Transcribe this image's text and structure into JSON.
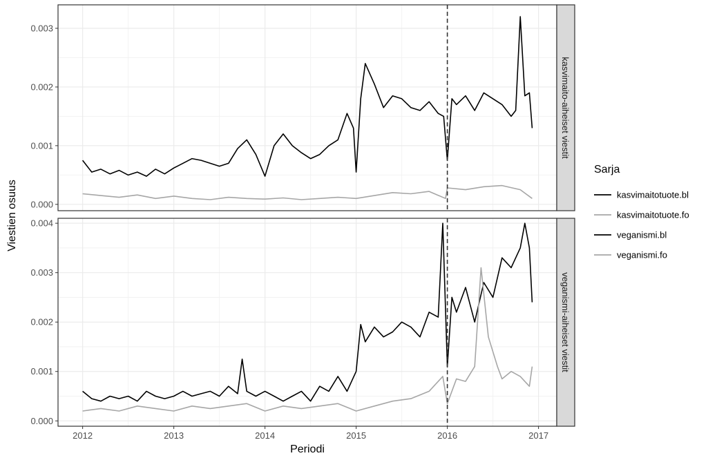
{
  "chart_data": {
    "type": "line",
    "xlabel": "Periodi",
    "ylabel": "Viestien osuus",
    "x_ticks": [
      2012,
      2013,
      2014,
      2015,
      2016,
      2017
    ],
    "vline_x": 2016,
    "legend": {
      "title": "Sarja",
      "placement": "right",
      "entries": [
        {
          "name": "kasvimaitotuote.bl",
          "color": "#000000"
        },
        {
          "name": "kasvimaitotuote.fo",
          "color": "#a6a6a6"
        },
        {
          "name": "veganismi.bl",
          "color": "#000000"
        },
        {
          "name": "veganismi.fo",
          "color": "#a6a6a6"
        }
      ]
    },
    "grid": true,
    "panels": [
      {
        "strip_label": "kasvimaito-aiheiset viestit",
        "xlim": [
          2011.73,
          2017.2
        ],
        "ylim": [
          -0.000108,
          0.0034
        ],
        "y_ticks": [
          0.0,
          0.001,
          0.002,
          0.003
        ],
        "y_tick_labels": [
          "0.000",
          "0.001",
          "0.002",
          "0.003"
        ],
        "series": [
          {
            "name": "kasvimaitotuote.bl",
            "color": "#000000",
            "x": [
              2012.0,
              2012.1,
              2012.2,
              2012.3,
              2012.4,
              2012.5,
              2012.6,
              2012.7,
              2012.8,
              2012.9,
              2013.0,
              2013.1,
              2013.2,
              2013.3,
              2013.4,
              2013.5,
              2013.6,
              2013.7,
              2013.8,
              2013.9,
              2014.0,
              2014.1,
              2014.2,
              2014.3,
              2014.4,
              2014.5,
              2014.6,
              2014.7,
              2014.8,
              2014.9,
              2014.97,
              2015.0,
              2015.05,
              2015.1,
              2015.2,
              2015.3,
              2015.4,
              2015.5,
              2015.6,
              2015.7,
              2015.8,
              2015.9,
              2015.96,
              2016.0,
              2016.05,
              2016.1,
              2016.2,
              2016.3,
              2016.4,
              2016.5,
              2016.6,
              2016.7,
              2016.75,
              2016.8,
              2016.85,
              2016.9,
              2016.93
            ],
            "y": [
              0.00075,
              0.00055,
              0.0006,
              0.00052,
              0.00058,
              0.0005,
              0.00055,
              0.00048,
              0.0006,
              0.00052,
              0.00062,
              0.0007,
              0.00078,
              0.00075,
              0.0007,
              0.00065,
              0.0007,
              0.00095,
              0.0011,
              0.00085,
              0.00048,
              0.001,
              0.0012,
              0.001,
              0.00088,
              0.00078,
              0.00085,
              0.001,
              0.0011,
              0.00155,
              0.0013,
              0.00055,
              0.0018,
              0.0024,
              0.00205,
              0.00165,
              0.00185,
              0.0018,
              0.00165,
              0.0016,
              0.00175,
              0.00155,
              0.0015,
              0.00075,
              0.0018,
              0.0017,
              0.00185,
              0.0016,
              0.0019,
              0.0018,
              0.0017,
              0.0015,
              0.0016,
              0.0032,
              0.00185,
              0.0019,
              0.0013
            ]
          },
          {
            "name": "kasvimaitotuote.fo",
            "color": "#a6a6a6",
            "x": [
              2012.0,
              2012.2,
              2012.4,
              2012.6,
              2012.8,
              2013.0,
              2013.2,
              2013.4,
              2013.6,
              2013.8,
              2014.0,
              2014.2,
              2014.4,
              2014.6,
              2014.8,
              2015.0,
              2015.2,
              2015.4,
              2015.6,
              2015.8,
              2015.98,
              2016.0,
              2016.2,
              2016.4,
              2016.6,
              2016.8,
              2016.93
            ],
            "y": [
              0.00018,
              0.00015,
              0.00012,
              0.00016,
              0.0001,
              0.00014,
              0.0001,
              8e-05,
              0.00012,
              0.0001,
              9e-05,
              0.00011,
              8e-05,
              0.0001,
              0.00012,
              0.0001,
              0.00015,
              0.0002,
              0.00018,
              0.00022,
              0.0001,
              0.00028,
              0.00025,
              0.0003,
              0.00032,
              0.00025,
              0.0001
            ]
          }
        ]
      },
      {
        "strip_label": "veganismi-aiheiset viestit",
        "xlim": [
          2011.73,
          2017.2
        ],
        "ylim": [
          -0.000108,
          0.0041
        ],
        "y_ticks": [
          0.0,
          0.001,
          0.002,
          0.003,
          0.004
        ],
        "y_tick_labels": [
          "0.000",
          "0.001",
          "0.002",
          "0.003",
          "0.004"
        ],
        "series": [
          {
            "name": "veganismi.bl",
            "color": "#000000",
            "x": [
              2012.0,
              2012.1,
              2012.2,
              2012.3,
              2012.4,
              2012.5,
              2012.6,
              2012.7,
              2012.8,
              2012.9,
              2013.0,
              2013.1,
              2013.2,
              2013.3,
              2013.4,
              2013.5,
              2013.6,
              2013.7,
              2013.75,
              2013.8,
              2013.9,
              2014.0,
              2014.1,
              2014.2,
              2014.3,
              2014.4,
              2014.5,
              2014.6,
              2014.7,
              2014.8,
              2014.9,
              2015.0,
              2015.05,
              2015.1,
              2015.2,
              2015.3,
              2015.4,
              2015.5,
              2015.6,
              2015.7,
              2015.8,
              2015.9,
              2015.95,
              2016.0,
              2016.05,
              2016.1,
              2016.2,
              2016.3,
              2016.4,
              2016.5,
              2016.6,
              2016.7,
              2016.8,
              2016.85,
              2016.9,
              2016.93
            ],
            "y": [
              0.0006,
              0.00045,
              0.0004,
              0.0005,
              0.00045,
              0.0005,
              0.0004,
              0.0006,
              0.0005,
              0.00045,
              0.0005,
              0.0006,
              0.0005,
              0.00055,
              0.0006,
              0.0005,
              0.0007,
              0.00055,
              0.00125,
              0.0006,
              0.0005,
              0.0006,
              0.0005,
              0.0004,
              0.0005,
              0.0006,
              0.0004,
              0.0007,
              0.0006,
              0.0009,
              0.0006,
              0.001,
              0.00195,
              0.0016,
              0.0019,
              0.0017,
              0.0018,
              0.002,
              0.0019,
              0.0017,
              0.0022,
              0.0021,
              0.004,
              0.0011,
              0.0025,
              0.0022,
              0.0027,
              0.002,
              0.0028,
              0.0025,
              0.0033,
              0.0031,
              0.0035,
              0.004,
              0.0035,
              0.0024
            ]
          },
          {
            "name": "veganismi.fo",
            "color": "#a6a6a6",
            "x": [
              2012.0,
              2012.2,
              2012.4,
              2012.6,
              2012.8,
              2013.0,
              2013.2,
              2013.4,
              2013.6,
              2013.8,
              2014.0,
              2014.2,
              2014.4,
              2014.6,
              2014.8,
              2015.0,
              2015.2,
              2015.4,
              2015.6,
              2015.8,
              2015.95,
              2016.0,
              2016.1,
              2016.2,
              2016.3,
              2016.37,
              2016.45,
              2016.55,
              2016.6,
              2016.7,
              2016.8,
              2016.9,
              2016.93
            ],
            "y": [
              0.0002,
              0.00025,
              0.0002,
              0.0003,
              0.00025,
              0.0002,
              0.0003,
              0.00025,
              0.0003,
              0.00035,
              0.0002,
              0.0003,
              0.00025,
              0.0003,
              0.00035,
              0.0002,
              0.0003,
              0.0004,
              0.00045,
              0.0006,
              0.0009,
              0.00035,
              0.00085,
              0.0008,
              0.0011,
              0.0031,
              0.0017,
              0.0011,
              0.00085,
              0.001,
              0.0009,
              0.0007,
              0.0011
            ]
          }
        ]
      }
    ]
  }
}
